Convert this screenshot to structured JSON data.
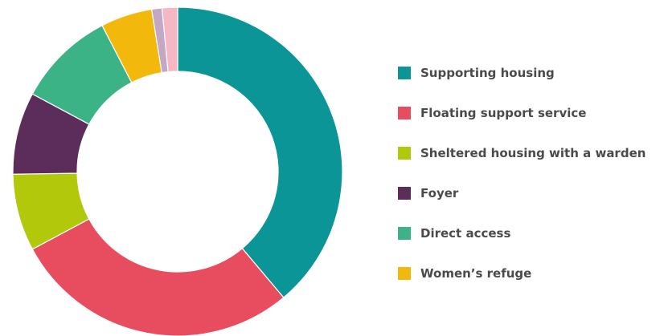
{
  "chart_data": {
    "type": "pie",
    "variant": "donut",
    "legend_position": "right",
    "categories": [
      "Supporting housing",
      "Floating support service",
      "Sheltered housing with a warden",
      "Foyer",
      "Direct access",
      "Women's refuge",
      "",
      ""
    ],
    "values": [
      38.5,
      28.0,
      7.5,
      8.0,
      9.5,
      5.0,
      1.0,
      1.5
    ],
    "colors": [
      "#0b9597",
      "#e84c5f",
      "#b2c80a",
      "#5c2d5a",
      "#3bb387",
      "#f2b90c",
      "#c4a7c4",
      "#f5b7c3"
    ],
    "legend": [
      {
        "label": "Supporting housing",
        "color": "#0b9597"
      },
      {
        "label": "Floating support service",
        "color": "#e84c5f"
      },
      {
        "label": "Sheltered housing with a warden",
        "color": "#b2c80a"
      },
      {
        "label": "Foyer",
        "color": "#5c2d5a"
      },
      {
        "label": "Direct access",
        "color": "#3bb387"
      },
      {
        "label": "Women’s refuge",
        "color": "#f2b90c"
      }
    ]
  }
}
